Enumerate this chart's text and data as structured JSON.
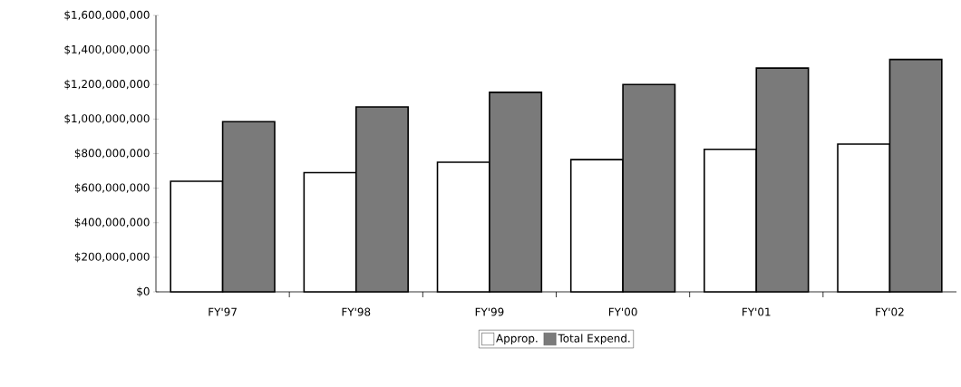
{
  "chart_data": {
    "type": "bar",
    "categories": [
      "FY'97",
      "FY'98",
      "FY'99",
      "FY'00",
      "FY'01",
      "FY'02"
    ],
    "series": [
      {
        "name": "Approp.",
        "color": "#ffffff",
        "values": [
          640000000,
          690000000,
          750000000,
          765000000,
          825000000,
          855000000
        ]
      },
      {
        "name": "Total Expend.",
        "color": "#7a7a7a",
        "values": [
          985000000,
          1070000000,
          1155000000,
          1200000000,
          1295000000,
          1345000000
        ]
      }
    ],
    "ylim": [
      0,
      1600000000
    ],
    "yticks": [
      {
        "value": 0,
        "label": "$0"
      },
      {
        "value": 200000000,
        "label": "$200,000,000"
      },
      {
        "value": 400000000,
        "label": "$400,000,000"
      },
      {
        "value": 600000000,
        "label": "$600,000,000"
      },
      {
        "value": 800000000,
        "label": "$800,000,000"
      },
      {
        "value": 1000000000,
        "label": "$1,000,000,000"
      },
      {
        "value": 1200000000,
        "label": "$1,200,000,000"
      },
      {
        "value": 1400000000,
        "label": "$1,400,000,000"
      },
      {
        "value": 1600000000,
        "label": "$1,600,000,000"
      }
    ],
    "legend": "bottom"
  }
}
